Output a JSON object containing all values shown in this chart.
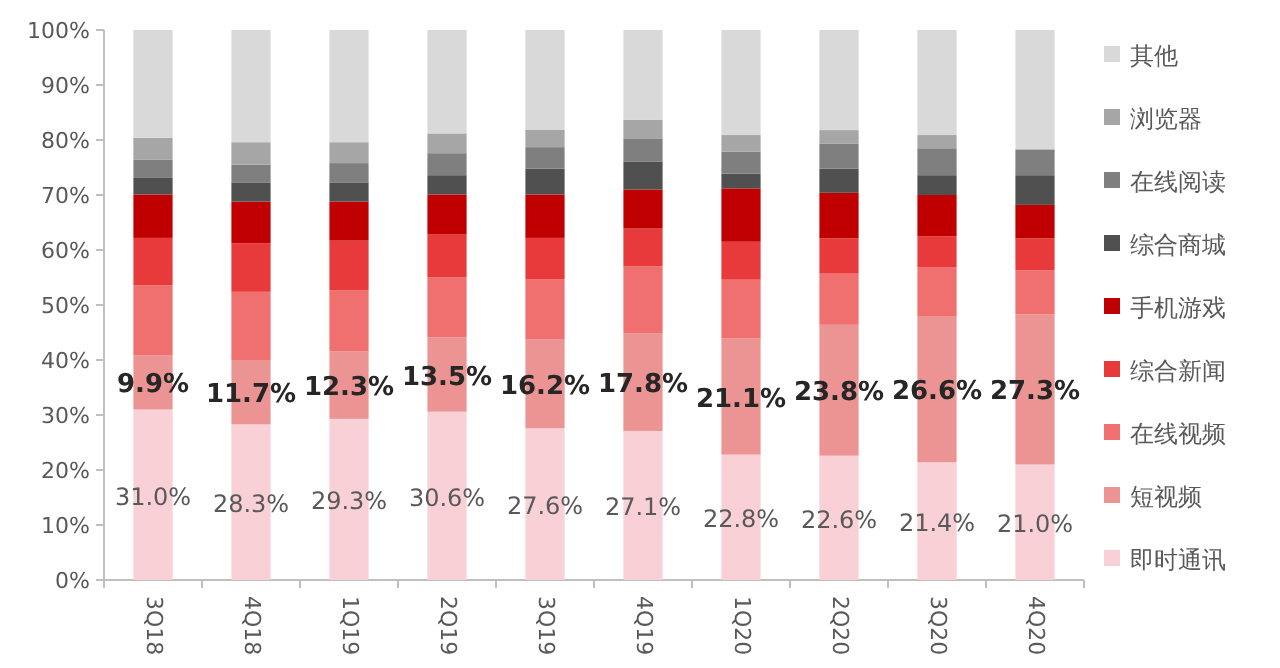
{
  "chart_data": {
    "type": "bar",
    "stacked": true,
    "legend": "right",
    "grid": false,
    "categories": [
      "3Q18",
      "4Q18",
      "1Q19",
      "2Q19",
      "3Q19",
      "4Q19",
      "1Q20",
      "2Q20",
      "3Q20",
      "4Q20"
    ],
    "ylim": [
      0,
      100
    ],
    "yticks": [
      {
        "value": 0,
        "label": "0%"
      },
      {
        "value": 10,
        "label": "10%"
      },
      {
        "value": 20,
        "label": "20%"
      },
      {
        "value": 30,
        "label": "30%"
      },
      {
        "value": 40,
        "label": "40%"
      },
      {
        "value": 50,
        "label": "50%"
      },
      {
        "value": 60,
        "label": "60%"
      },
      {
        "value": 70,
        "label": "70%"
      },
      {
        "value": 80,
        "label": "80%"
      },
      {
        "value": 90,
        "label": "90%"
      },
      {
        "value": 100,
        "label": "100%"
      }
    ],
    "series": [
      {
        "name": "即时通讯",
        "color": "#f9d0d6",
        "values": [
          31.0,
          28.3,
          29.3,
          30.6,
          27.6,
          27.1,
          22.8,
          22.6,
          21.4,
          21.0
        ],
        "value_labels": [
          "31.0%",
          "28.3%",
          "29.3%",
          "30.6%",
          "27.6%",
          "27.1%",
          "22.8%",
          "22.6%",
          "21.4%",
          "21.0%"
        ]
      },
      {
        "name": "短视频",
        "color": "#ec9494",
        "values": [
          9.9,
          11.7,
          12.3,
          13.5,
          16.2,
          17.8,
          21.1,
          23.8,
          26.6,
          27.3
        ],
        "value_labels": [
          "9.9%",
          "11.7%",
          "12.3%",
          "13.5%",
          "16.2%",
          "17.8%",
          "21.1%",
          "23.8%",
          "26.6%",
          "27.3%"
        ]
      },
      {
        "name": "在线视频",
        "color": "#f07070",
        "values": [
          12.7,
          12.4,
          11.1,
          10.9,
          10.9,
          12.1,
          10.7,
          9.3,
          8.9,
          8.0
        ]
      },
      {
        "name": "综合新闻",
        "color": "#e83a3a",
        "values": [
          8.6,
          8.8,
          9.0,
          7.8,
          7.5,
          6.9,
          6.9,
          6.4,
          5.6,
          5.8
        ]
      },
      {
        "name": "手机游戏",
        "color": "#c00000",
        "values": [
          7.9,
          7.6,
          7.1,
          7.3,
          7.9,
          7.1,
          9.7,
          8.3,
          7.5,
          6.1
        ]
      },
      {
        "name": "综合商城",
        "color": "#505050",
        "values": [
          3.0,
          3.4,
          3.4,
          3.5,
          4.7,
          5.1,
          2.7,
          4.4,
          3.6,
          5.4
        ]
      },
      {
        "name": "在线阅读",
        "color": "#7f7f7f",
        "values": [
          3.3,
          3.3,
          3.6,
          4.0,
          3.9,
          4.2,
          4.0,
          4.5,
          4.9,
          4.7
        ]
      },
      {
        "name": "浏览器",
        "color": "#a6a6a6",
        "values": [
          4.0,
          4.1,
          3.8,
          3.6,
          3.2,
          3.4,
          3.0,
          2.5,
          2.4,
          0
        ]
      },
      {
        "name": "其他",
        "color": "#d9d9d9",
        "values": [
          19.6,
          20.4,
          20.4,
          18.8,
          18.1,
          16.3,
          19.1,
          18.2,
          19.1,
          21.7
        ]
      }
    ]
  }
}
